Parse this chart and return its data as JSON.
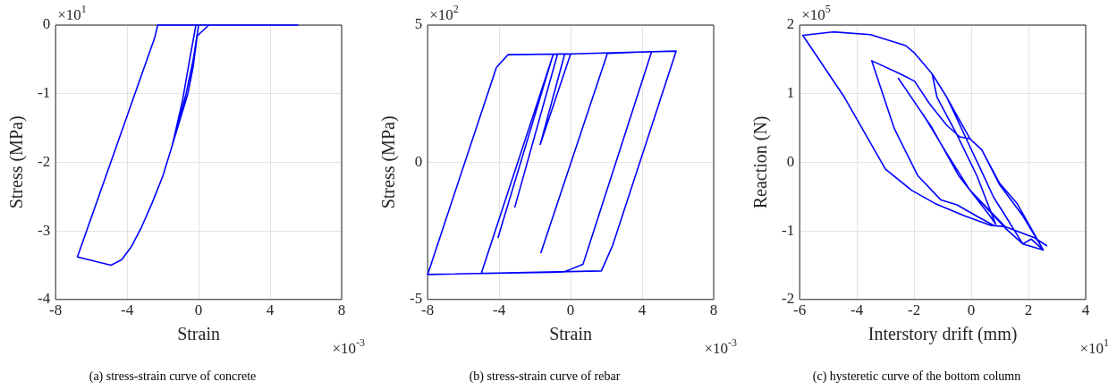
{
  "chart_data": [
    {
      "type": "line",
      "title": "(a) stress-strain curve of concrete",
      "xlabel": "Strain",
      "ylabel": "Stress (MPa)",
      "annotations": [
        "×10$^{1}$",
        "×10$^{-3}$"
      ],
      "xlim": [
        -8,
        8
      ],
      "xticks": [
        -8,
        -4,
        0,
        4,
        8
      ],
      "ylim": [
        -4,
        0
      ],
      "yticks": [
        -4,
        -3,
        -2,
        -1,
        0
      ],
      "grid": true,
      "series": [
        {
          "color": "#0000ff",
          "x": [
            0,
            -0.3,
            -0.7,
            -1.0,
            -1.47,
            -2.0,
            -2.61,
            -3.2,
            -3.76,
            -4.3,
            -4.9,
            -6.78,
            -2.45,
            -2.29,
            -1.9,
            0.57,
            -0.08,
            -0.3,
            -0.6,
            -1.47,
            -0.9,
            -0.5,
            -0.15,
            5.58
          ],
          "values": [
            0,
            -0.5,
            -1,
            -1.3,
            -1.75,
            -2.2,
            -2.6,
            -2.95,
            -3.23,
            -3.42,
            -3.5,
            -3.38,
            -0.18,
            0,
            0,
            0,
            -0.16,
            -0.6,
            -1.0,
            -1.75,
            -1.1,
            -0.5,
            0,
            0
          ]
        }
      ]
    },
    {
      "type": "line",
      "title": "(b) stress-strain curve of rebar",
      "xlabel": "Strain",
      "ylabel": "Stress (MPa)",
      "annotations": [
        "×10$^{2}$",
        "×10$^{-3}$"
      ],
      "xlim": [
        -8,
        8
      ],
      "xticks": [
        -8,
        -4,
        0,
        4,
        8
      ],
      "ylim": [
        -5,
        5
      ],
      "yticks": [
        -5,
        0,
        5
      ],
      "grid": true,
      "series": [
        {
          "color": "#0000ff",
          "x": [
            -1.67,
            2.06,
            4.53,
            0.69,
            -0.39,
            -5.0,
            -0.98,
            -4.06,
            -0.98,
            -0.73,
            -3.12,
            -0.73,
            -0.33,
            -1.7,
            -0.33,
            0.0,
            -1.7,
            0.0,
            5.9,
            2.35,
            1.72,
            -8,
            -4.15,
            -3.5,
            0.0
          ],
          "values": [
            -3.31,
            3.97,
            4.03,
            -3.72,
            -4.0,
            -4.05,
            3.92,
            -2.74,
            3.92,
            3.95,
            -1.63,
            3.95,
            3.95,
            0.65,
            3.95,
            3.95,
            0.65,
            3.95,
            4.05,
            -3.03,
            -3.96,
            -4.09,
            3.46,
            3.92,
            3.95
          ]
        }
      ]
    },
    {
      "type": "line",
      "title": "(c) hysteretic curve of the bottom column",
      "xlabel": "Interstory drift (mm)",
      "ylabel": "Reaction (N)",
      "annotations": [
        "×10$^{5}$",
        "×10$^{1}$"
      ],
      "xlim": [
        -6,
        4
      ],
      "xticks": [
        -6,
        -4,
        -2,
        0,
        2,
        4
      ],
      "ylim": [
        -2,
        2
      ],
      "yticks": [
        -2,
        -1,
        0,
        1,
        2
      ],
      "grid": true,
      "series": [
        {
          "color": "#0000ff",
          "x": [
            -2.56,
            -1.37,
            -0.45,
            0.65,
            0.85,
            0.2,
            -0.5,
            -1.2,
            -1.37,
            -0.86,
            -0.45,
            -0.04,
            0.37,
            0.78,
            1.19,
            1.8,
            2.52,
            1.6,
            0.98,
            0.37,
            -0.04,
            -0.4,
            -0.86,
            -1.47,
            -1.98,
            -2.49,
            -3.48,
            -2.7,
            -1.88,
            -1.06,
            -0.5,
            0.17,
            0.78,
            1.19,
            -0.04,
            -0.86,
            -1.67,
            -0.86,
            -0.04,
            1.19,
            1.8,
            2.1,
            2.52,
            1.8,
            0.98,
            0.37,
            -0.04,
            -0.86,
            -1.37,
            -1.98,
            -2.29,
            -3.52,
            -4.84,
            -5.89,
            -4.44,
            -3.0,
            -2.08,
            -1.27,
            -0.24,
            0.68,
            1.19,
            2.21,
            2.65
          ],
          "values": [
            1.23,
            0.5,
            -0.19,
            -0.78,
            -0.9,
            -0.2,
            0.4,
            0.95,
            1.29,
            0.95,
            0.59,
            0.22,
            -0.14,
            -0.51,
            -0.78,
            -1.19,
            -1.28,
            -0.6,
            -0.3,
            0.18,
            0.34,
            0.37,
            0.54,
            0.86,
            1.18,
            1.29,
            1.48,
            0.5,
            -0.19,
            -0.55,
            -0.62,
            -0.78,
            -0.92,
            -0.94,
            -0.41,
            0.13,
            0.69,
            0.13,
            -0.41,
            -0.96,
            -1.19,
            -1.12,
            -1.28,
            -0.78,
            -0.32,
            0.18,
            0.34,
            0.95,
            1.29,
            1.59,
            1.7,
            1.86,
            1.9,
            1.85,
            0.95,
            -0.1,
            -0.41,
            -0.6,
            -0.78,
            -0.92,
            -0.94,
            -1.1,
            -1.22
          ]
        }
      ]
    }
  ]
}
